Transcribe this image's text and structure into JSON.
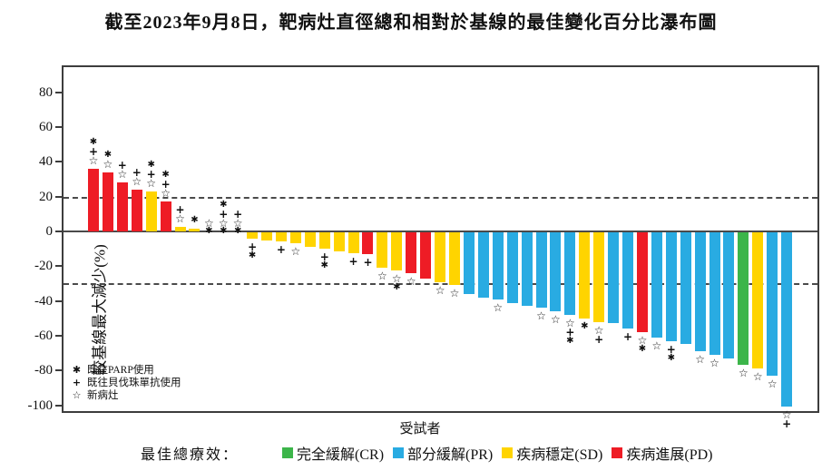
{
  "title": "截至2023年9月8日，靶病灶直徑總和相對於基線的最佳變化百分比瀑布圖",
  "chart_data": {
    "type": "bar",
    "title": "截至2023年9月8日，靶病灶直徑總和相對於基線的最佳變化百分比瀑布圖",
    "ylabel": "較基線最大減少(%)",
    "xlabel": "受試者",
    "ylim": [
      -110,
      92
    ],
    "yticks": [
      80,
      60,
      40,
      20,
      0,
      -20,
      -40,
      -60,
      -80,
      -100
    ],
    "reference_lines": [
      20,
      -30
    ],
    "grid": false,
    "legend_position": "bottom",
    "legend_title": "最佳總療效：",
    "response_colors": {
      "CR": "#3CB54A",
      "PR": "#29ABE2",
      "SD": "#FFD400",
      "PD": "#EE1C25"
    },
    "legend": [
      {
        "code": "CR",
        "label": "完全緩解(CR)",
        "color": "#3CB54A"
      },
      {
        "code": "PR",
        "label": "部分緩解(PR)",
        "color": "#29ABE2"
      },
      {
        "code": "SD",
        "label": "疾病穩定(SD)",
        "color": "#FFD400"
      },
      {
        "code": "PD",
        "label": "疾病進展(PD)",
        "color": "#EE1C25"
      }
    ],
    "marker_legend": [
      {
        "key": "parp",
        "symbol": "✱",
        "label": "既往PARP使用"
      },
      {
        "key": "bev",
        "symbol": "+",
        "label": "既往貝伐珠單抗使用"
      },
      {
        "key": "new",
        "symbol": "☆",
        "label": "新病灶"
      }
    ],
    "bars": [
      {
        "value": 36,
        "response": "PD",
        "markers": [
          "parp",
          "bev",
          "new"
        ]
      },
      {
        "value": 34,
        "response": "PD",
        "markers": [
          "parp",
          "new"
        ]
      },
      {
        "value": 28,
        "response": "PD",
        "markers": [
          "bev",
          "new"
        ]
      },
      {
        "value": 24,
        "response": "PD",
        "markers": [
          "bev",
          "new"
        ]
      },
      {
        "value": 23,
        "response": "SD",
        "markers": [
          "parp",
          "bev",
          "new"
        ]
      },
      {
        "value": 17,
        "response": "PD",
        "markers": [
          "parp",
          "bev",
          "new"
        ]
      },
      {
        "value": 2.5,
        "response": "SD",
        "markers": [
          "bev",
          "new"
        ]
      },
      {
        "value": 1.5,
        "response": "SD",
        "markers": [
          "parp"
        ]
      },
      {
        "value": 0,
        "response": "SD",
        "markers": [
          "new"
        ],
        "line_marker": true
      },
      {
        "value": 0,
        "response": "SD",
        "markers": [
          "parp",
          "bev",
          "new"
        ],
        "line_marker": true
      },
      {
        "value": 0,
        "response": "SD",
        "markers": [
          "bev",
          "new"
        ],
        "line_marker": true
      },
      {
        "value": -4,
        "response": "SD",
        "markers": [
          "bev",
          "parp"
        ]
      },
      {
        "value": -5,
        "response": "SD",
        "markers": []
      },
      {
        "value": -6,
        "response": "SD",
        "markers": [
          "bev"
        ]
      },
      {
        "value": -7,
        "response": "SD",
        "markers": [
          "new"
        ]
      },
      {
        "value": -9,
        "response": "SD",
        "markers": []
      },
      {
        "value": -10,
        "response": "SD",
        "markers": [
          "bev",
          "parp"
        ]
      },
      {
        "value": -11.5,
        "response": "SD",
        "markers": []
      },
      {
        "value": -12.5,
        "response": "SD",
        "markers": [
          "bev"
        ]
      },
      {
        "value": -13,
        "response": "PD",
        "markers": [
          "bev"
        ]
      },
      {
        "value": -21,
        "response": "SD",
        "markers": [
          "new"
        ]
      },
      {
        "value": -22.5,
        "response": "SD",
        "markers": [
          "new",
          "parp"
        ]
      },
      {
        "value": -24,
        "response": "PD",
        "markers": [
          "new"
        ]
      },
      {
        "value": -27,
        "response": "PD",
        "markers": []
      },
      {
        "value": -29,
        "response": "SD",
        "markers": [
          "new"
        ]
      },
      {
        "value": -31,
        "response": "SD",
        "markers": [
          "new"
        ]
      },
      {
        "value": -36,
        "response": "PR",
        "markers": []
      },
      {
        "value": -38,
        "response": "PR",
        "markers": []
      },
      {
        "value": -39,
        "response": "PR",
        "markers": [
          "new"
        ]
      },
      {
        "value": -41,
        "response": "PR",
        "markers": []
      },
      {
        "value": -43,
        "response": "PR",
        "markers": []
      },
      {
        "value": -44,
        "response": "PR",
        "markers": [
          "new"
        ]
      },
      {
        "value": -46,
        "response": "PR",
        "markers": [
          "new"
        ]
      },
      {
        "value": -48,
        "response": "PR",
        "markers": [
          "new",
          "bev",
          "parp"
        ]
      },
      {
        "value": -50,
        "response": "SD",
        "markers": [
          "parp"
        ]
      },
      {
        "value": -52,
        "response": "SD",
        "markers": [
          "new",
          "bev"
        ]
      },
      {
        "value": -52.5,
        "response": "PR",
        "markers": []
      },
      {
        "value": -56,
        "response": "PR",
        "markers": [
          "bev"
        ]
      },
      {
        "value": -58,
        "response": "PD",
        "markers": [
          "new",
          "parp"
        ]
      },
      {
        "value": -61,
        "response": "PR",
        "markers": [
          "new"
        ]
      },
      {
        "value": -63,
        "response": "PR",
        "markers": [
          "bev",
          "parp"
        ]
      },
      {
        "value": -65,
        "response": "PR",
        "markers": []
      },
      {
        "value": -69,
        "response": "PR",
        "markers": [
          "new"
        ]
      },
      {
        "value": -71,
        "response": "PR",
        "markers": [
          "new"
        ]
      },
      {
        "value": -73,
        "response": "PR",
        "markers": []
      },
      {
        "value": -77,
        "response": "CR",
        "markers": [
          "new"
        ]
      },
      {
        "value": -79,
        "response": "SD",
        "markers": [
          "new"
        ]
      },
      {
        "value": -83,
        "response": "PR",
        "markers": [
          "new"
        ]
      },
      {
        "value": -101,
        "response": "PR",
        "markers": [
          "new",
          "bev"
        ]
      }
    ]
  }
}
